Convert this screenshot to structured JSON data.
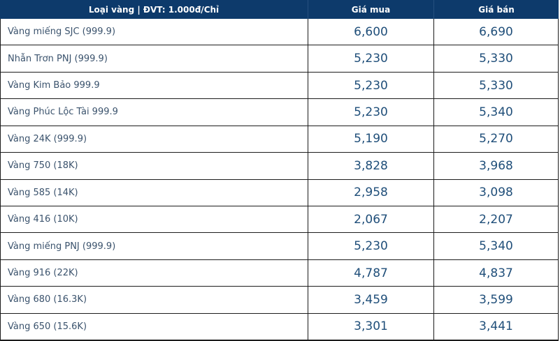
{
  "colors": {
    "header_bg": "#0d3a6b",
    "header_text": "#ffffff",
    "header_divider": "#26507f",
    "label_text": "#3b536d",
    "price_text": "#1f4e79",
    "border": "#1c1c1c"
  },
  "table": {
    "header": {
      "type_label": "Loại vàng | ĐVT: 1.000đ/Chỉ",
      "buy_label": "Giá mua",
      "sell_label": "Giá bán"
    },
    "rows": [
      {
        "type": "Vàng miếng SJC (999.9)",
        "buy": "6,600",
        "sell": "6,690"
      },
      {
        "type": "Nhẫn Trơn PNJ (999.9)",
        "buy": "5,230",
        "sell": "5,330"
      },
      {
        "type": "Vàng Kim Bảo 999.9",
        "buy": "5,230",
        "sell": "5,330"
      },
      {
        "type": "Vàng Phúc Lộc Tài 999.9",
        "buy": "5,230",
        "sell": "5,340"
      },
      {
        "type": "Vàng 24K (999.9)",
        "buy": "5,190",
        "sell": "5,270"
      },
      {
        "type": "Vàng 750 (18K)",
        "buy": "3,828",
        "sell": "3,968"
      },
      {
        "type": "Vàng 585 (14K)",
        "buy": "2,958",
        "sell": "3,098"
      },
      {
        "type": "Vàng 416 (10K)",
        "buy": "2,067",
        "sell": "2,207"
      },
      {
        "type": "Vàng miếng PNJ (999.9)",
        "buy": "5,230",
        "sell": "5,340"
      },
      {
        "type": "Vàng 916 (22K)",
        "buy": "4,787",
        "sell": "4,837"
      },
      {
        "type": "Vàng 680 (16.3K)",
        "buy": "3,459",
        "sell": "3,599"
      },
      {
        "type": "Vàng 650 (15.6K)",
        "buy": "3,301",
        "sell": "3,441"
      }
    ]
  }
}
